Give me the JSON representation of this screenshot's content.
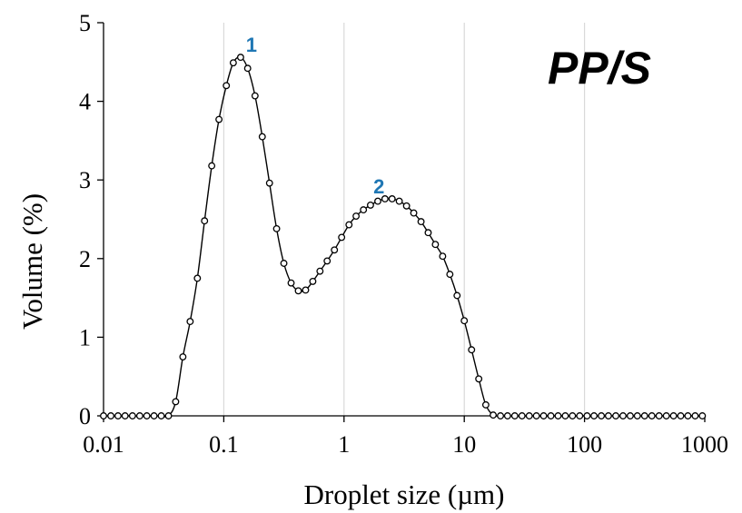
{
  "chart_data": {
    "type": "line",
    "title": "PP/S",
    "xlabel": "Droplet size (µm)",
    "ylabel": "Volume (%)",
    "x_scale": "log",
    "xlim": [
      0.01,
      1000
    ],
    "ylim": [
      0,
      5
    ],
    "x_ticks": [
      "0.01",
      "0.1",
      "1",
      "10",
      "100",
      "1000"
    ],
    "y_ticks": [
      "0",
      "1",
      "2",
      "3",
      "4",
      "5"
    ],
    "grid": "vertical",
    "marker": "open-circle",
    "series": [
      {
        "x": [
          0.01,
          0.0115,
          0.0132,
          0.0151,
          0.0174,
          0.02,
          0.0229,
          0.0263,
          0.0302,
          0.0347,
          0.0398,
          0.0457,
          0.0525,
          0.0603,
          0.0692,
          0.0794,
          0.0912,
          0.105,
          0.12,
          0.138,
          0.158,
          0.182,
          0.209,
          0.24,
          0.275,
          0.316,
          0.363,
          0.417,
          0.479,
          0.55,
          0.631,
          0.724,
          0.832,
          0.955,
          1.1,
          1.26,
          1.45,
          1.66,
          1.91,
          2.19,
          2.51,
          2.88,
          3.31,
          3.8,
          4.37,
          5.01,
          5.75,
          6.61,
          7.59,
          8.71,
          10.0,
          11.5,
          13.2,
          15.1,
          17.4,
          20.0,
          22.9,
          26.3,
          30.2,
          34.7,
          39.8,
          45.7,
          52.5,
          60.3,
          69.2,
          79.4,
          91.2,
          105,
          120,
          138,
          158,
          182,
          209,
          240,
          275,
          316,
          363,
          417,
          479,
          550,
          631,
          724,
          832,
          955
        ],
        "values": [
          0,
          0,
          0,
          0,
          0,
          0,
          0,
          0,
          0,
          0,
          0.18,
          0.75,
          1.2,
          1.75,
          2.48,
          3.18,
          3.77,
          4.2,
          4.49,
          4.56,
          4.42,
          4.07,
          3.55,
          2.96,
          2.38,
          1.94,
          1.69,
          1.59,
          1.6,
          1.71,
          1.84,
          1.97,
          2.11,
          2.27,
          2.43,
          2.54,
          2.62,
          2.68,
          2.73,
          2.76,
          2.76,
          2.73,
          2.67,
          2.58,
          2.47,
          2.33,
          2.18,
          2.03,
          1.8,
          1.53,
          1.21,
          0.84,
          0.47,
          0.14,
          0.01,
          0,
          0,
          0,
          0,
          0,
          0,
          0,
          0,
          0,
          0,
          0,
          0,
          0,
          0,
          0,
          0,
          0,
          0,
          0,
          0,
          0,
          0,
          0,
          0,
          0,
          0,
          0,
          0,
          0
        ]
      }
    ],
    "annotations": [
      {
        "text": "1",
        "x": 0.17,
        "y": 4.56,
        "color": "#1f77b4"
      },
      {
        "text": "2",
        "x": 1.95,
        "y": 2.76,
        "color": "#1f77b4"
      }
    ]
  }
}
